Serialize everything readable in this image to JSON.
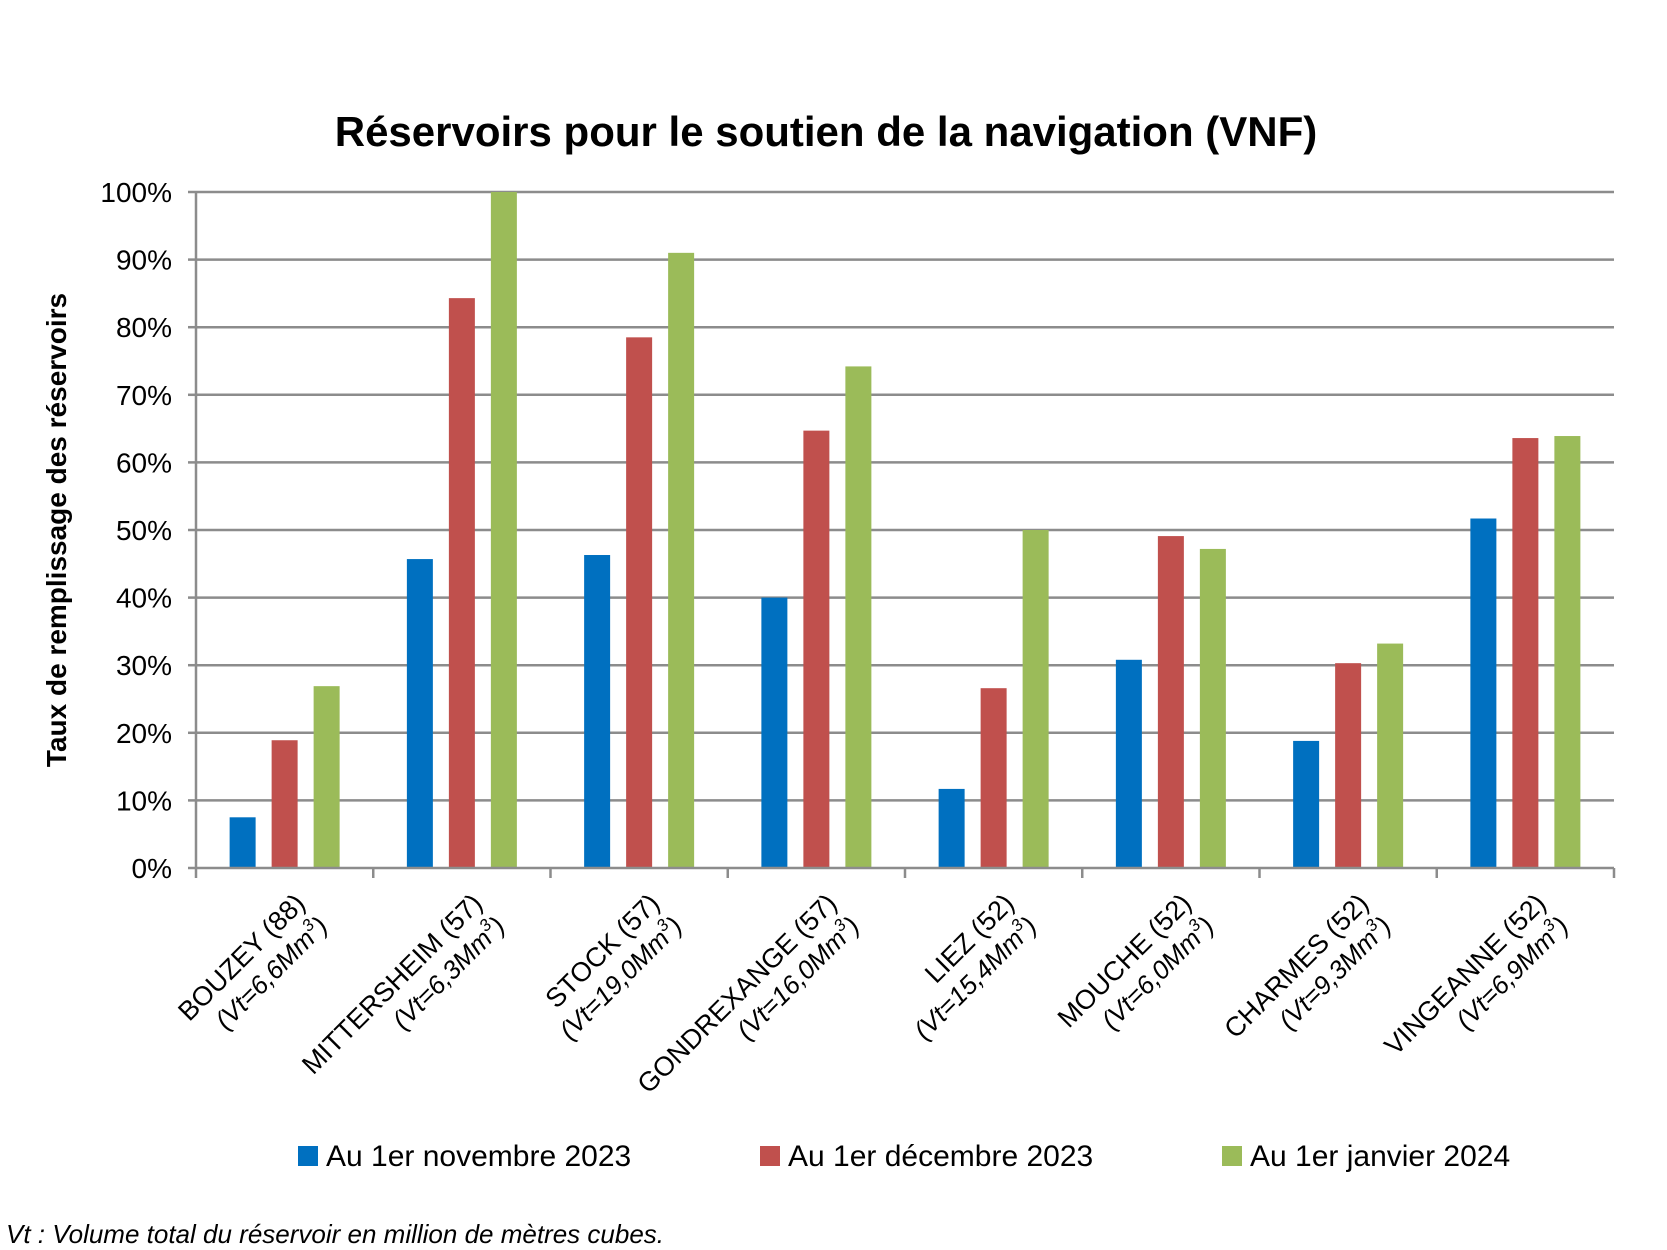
{
  "chart_data": {
    "type": "bar",
    "title": "Réservoirs pour le soutien de la navigation (VNF)",
    "ylabel": "Taux de remplissage des réservoirs",
    "xlabel": "",
    "ylim": [
      0,
      100
    ],
    "ytick_labels": [
      "0%",
      "10%",
      "20%",
      "30%",
      "40%",
      "50%",
      "60%",
      "70%",
      "80%",
      "90%",
      "100%"
    ],
    "grid": true,
    "legend_position": "bottom",
    "categories": [
      {
        "name": "BOUZEY (88)",
        "volume": "(Vt=6,6Mm",
        "sup": "3",
        "close": ")"
      },
      {
        "name": "MITTERSHEIM (57)",
        "volume": "(Vt=6,3Mm",
        "sup": "3",
        "close": ")"
      },
      {
        "name": "STOCK (57)",
        "volume": "(Vt=19,0Mm",
        "sup": "3",
        "close": ")"
      },
      {
        "name": "GONDREXANGE (57)",
        "volume": "(Vt=16,0Mm",
        "sup": "3",
        "close": ")"
      },
      {
        "name": "LIEZ (52)",
        "volume": "(Vt=15,4Mm",
        "sup": "3",
        "close": ")"
      },
      {
        "name": "MOUCHE (52)",
        "volume": "(Vt=6,0Mm",
        "sup": "3",
        "close": ")"
      },
      {
        "name": "CHARMES (52)",
        "volume": "(Vt=9,3Mm",
        "sup": "3",
        "close": ")"
      },
      {
        "name": "VINGEANNE (52)",
        "volume": "(Vt=6,9Mm",
        "sup": "3",
        "close": ")"
      }
    ],
    "series": [
      {
        "name": "Au 1er novembre 2023",
        "color": "#0070C0",
        "values": [
          7.5,
          45.7,
          46.3,
          40.0,
          11.7,
          30.8,
          18.8,
          51.7
        ]
      },
      {
        "name": "Au 1er décembre 2023",
        "color": "#C0504D",
        "values": [
          18.9,
          84.3,
          78.5,
          64.7,
          26.6,
          49.1,
          30.3,
          63.6
        ]
      },
      {
        "name": "Au 1er janvier 2024",
        "color": "#9BBB59",
        "values": [
          26.9,
          100.0,
          91.0,
          74.2,
          50.0,
          47.2,
          33.2,
          63.9
        ]
      }
    ],
    "footnote": "Vt : Volume total du réservoir en million de mètres cubes."
  }
}
